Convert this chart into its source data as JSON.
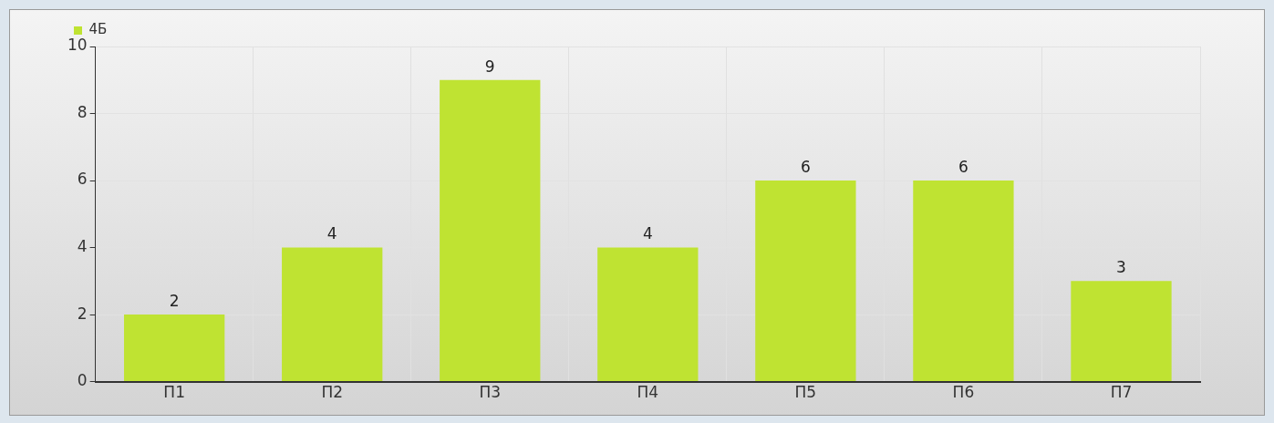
{
  "chart_data": {
    "type": "bar",
    "categories": [
      "П1",
      "П2",
      "П3",
      "П4",
      "П5",
      "П6",
      "П7"
    ],
    "series": [
      {
        "name": "4Б",
        "color": "#bfe332",
        "values": [
          2,
          4,
          9,
          4,
          6,
          6,
          3
        ]
      }
    ],
    "ylim": [
      0,
      10
    ],
    "yticks": [
      0,
      2,
      4,
      6,
      8,
      10
    ],
    "grid": true,
    "legend": "top left",
    "data_labels": true
  }
}
